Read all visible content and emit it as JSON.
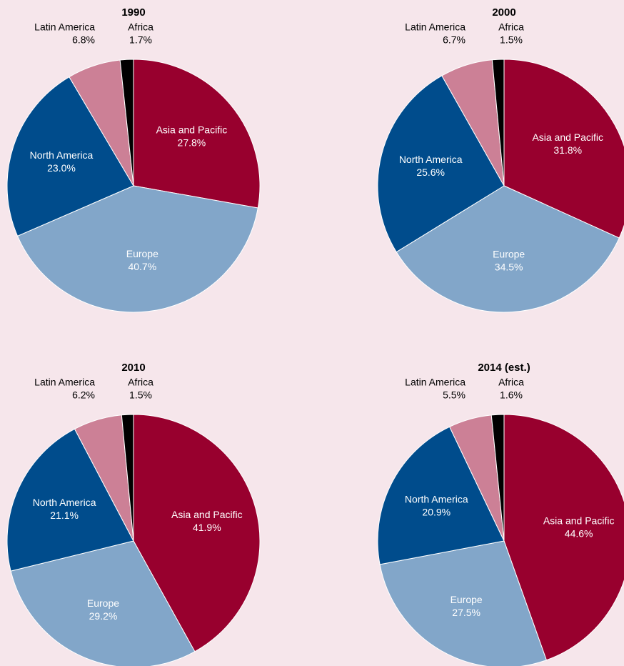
{
  "chart_data": [
    {
      "type": "pie",
      "title": "1990",
      "categories": [
        "Asia and Pacific",
        "Europe",
        "North America",
        "Latin America",
        "Africa"
      ],
      "values": [
        27.8,
        40.7,
        23.0,
        6.8,
        1.7
      ],
      "value_labels": [
        "27.8%",
        "40.7%",
        "23.0%",
        "6.8%",
        "1.7%"
      ],
      "colors": [
        "#98002e",
        "#82a6c9",
        "#004c8c",
        "#cc8096",
        "#000000"
      ]
    },
    {
      "type": "pie",
      "title": "2000",
      "categories": [
        "Asia and Pacific",
        "Europe",
        "North America",
        "Latin America",
        "Africa"
      ],
      "values": [
        31.8,
        34.5,
        25.6,
        6.7,
        1.5
      ],
      "value_labels": [
        "31.8%",
        "34.5%",
        "25.6%",
        "6.7%",
        "1.5%"
      ],
      "colors": [
        "#98002e",
        "#82a6c9",
        "#004c8c",
        "#cc8096",
        "#000000"
      ]
    },
    {
      "type": "pie",
      "title": "2010",
      "categories": [
        "Asia and Pacific",
        "Europe",
        "North America",
        "Latin America",
        "Africa"
      ],
      "values": [
        41.9,
        29.2,
        21.1,
        6.2,
        1.5
      ],
      "value_labels": [
        "41.9%",
        "29.2%",
        "21.1%",
        "6.2%",
        "1.5%"
      ],
      "colors": [
        "#98002e",
        "#82a6c9",
        "#004c8c",
        "#cc8096",
        "#000000"
      ]
    },
    {
      "type": "pie",
      "title": "2014 (est.)",
      "categories": [
        "Asia and Pacific",
        "Europe",
        "North America",
        "Latin America",
        "Africa"
      ],
      "values": [
        44.6,
        27.5,
        20.9,
        5.5,
        1.6
      ],
      "value_labels": [
        "44.6%",
        "27.5%",
        "20.9%",
        "5.5%",
        "1.6%"
      ],
      "colors": [
        "#98002e",
        "#82a6c9",
        "#004c8c",
        "#cc8096",
        "#000000"
      ]
    }
  ]
}
